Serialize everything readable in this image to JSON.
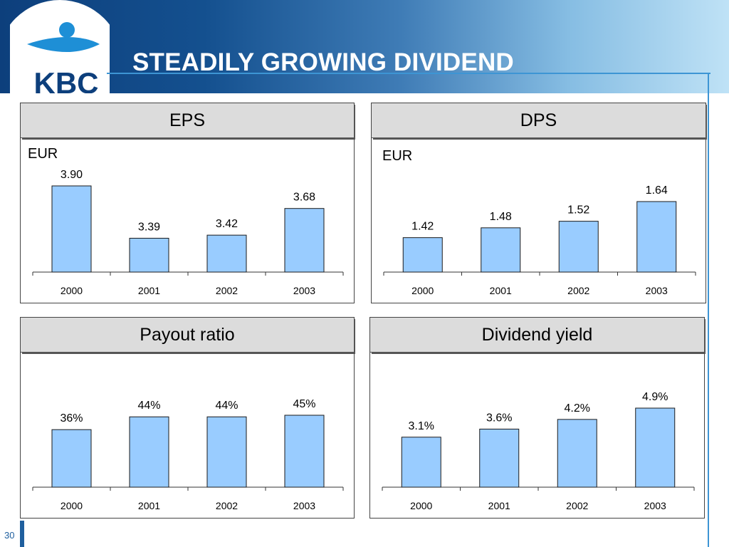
{
  "header": {
    "title": "STEADILY GROWING DIVIDEND"
  },
  "logo": {
    "text": "KBC"
  },
  "footer": {
    "page_number": "30"
  },
  "colors": {
    "bar": "#99ccff",
    "bar_stroke": "#1a1a1a",
    "header_dark": "#0d3f7c",
    "accent_line": "#3d95d4"
  },
  "chart_data": [
    {
      "type": "bar",
      "title": "EPS",
      "ylabel": "EUR",
      "categories": [
        "2000",
        "2001",
        "2002",
        "2003"
      ],
      "values": [
        3.9,
        3.39,
        3.42,
        3.68
      ],
      "data_labels": [
        "3.90",
        "3.39",
        "3.42",
        "3.68"
      ],
      "ylim": [
        3.06,
        3.9
      ]
    },
    {
      "type": "bar",
      "title": "DPS",
      "ylabel": "EUR",
      "categories": [
        "2000",
        "2001",
        "2002",
        "2003"
      ],
      "values": [
        1.42,
        1.48,
        1.52,
        1.64
      ],
      "data_labels": [
        "1.42",
        "1.48",
        "1.52",
        "1.64"
      ],
      "ylim": [
        1.21,
        1.64
      ]
    },
    {
      "type": "bar",
      "title": "Payout ratio",
      "categories": [
        "2000",
        "2001",
        "2002",
        "2003"
      ],
      "values": [
        36,
        44,
        44,
        45
      ],
      "data_labels": [
        "36%",
        "44%",
        "44%",
        "45%"
      ],
      "ylim": [
        0,
        45
      ]
    },
    {
      "type": "bar",
      "title": "Dividend yield",
      "categories": [
        "2000",
        "2001",
        "2002",
        "2003"
      ],
      "values": [
        3.1,
        3.6,
        4.2,
        4.9
      ],
      "data_labels": [
        "3.1%",
        "3.6%",
        "4.2%",
        "4.9%"
      ],
      "ylim": [
        0,
        4.9
      ]
    }
  ]
}
